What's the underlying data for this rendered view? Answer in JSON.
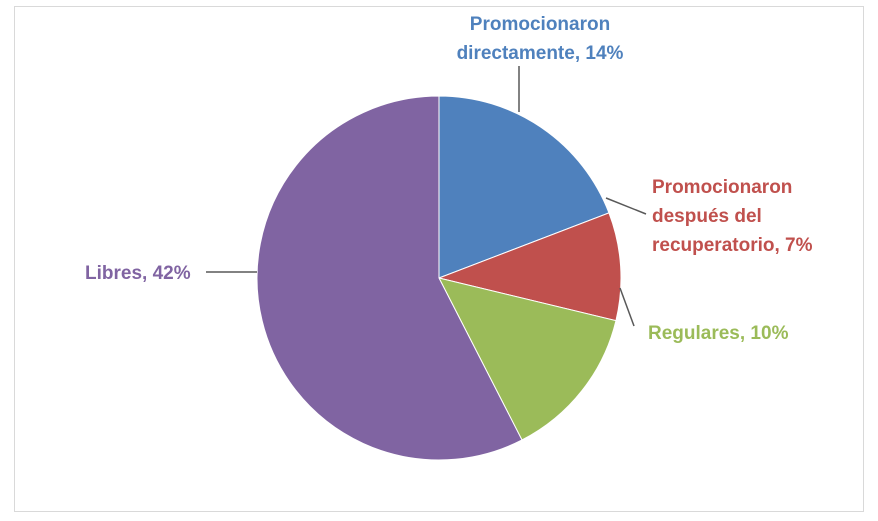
{
  "chart_data": {
    "type": "pie",
    "title": "",
    "slices": [
      {
        "label_lines": [
          "Promocionaron",
          "directamente, 14%"
        ],
        "category": "Promocionaron directamente",
        "percent": 14,
        "color": "#4F81BD"
      },
      {
        "label_lines": [
          "Promocionaron",
          "después del",
          "recuperatorio, 7%"
        ],
        "category": "Promocionaron después del recuperatorio",
        "percent": 7,
        "color": "#C0504D"
      },
      {
        "label_lines": [
          "Regulares, 10%"
        ],
        "category": "Regulares",
        "percent": 10,
        "color": "#9BBB59"
      },
      {
        "label_lines": [
          "Libres, 42%"
        ],
        "category": "Libres",
        "percent": 42,
        "color": "#8064A2"
      }
    ],
    "start_angle": "12 o'clock",
    "direction": "clockwise",
    "legend": "none",
    "data_labels": "outside with leader lines"
  }
}
